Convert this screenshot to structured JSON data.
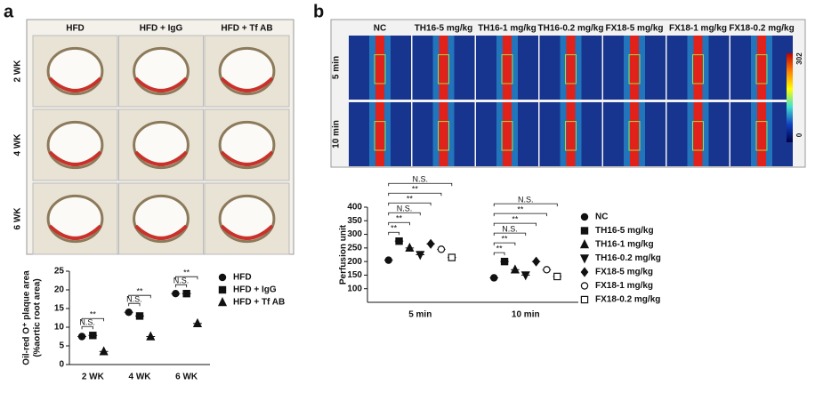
{
  "images": [
    {
      "label": "a",
      "columns": [
        "HFD",
        "HFD + IgG",
        "HFD + Tf AB"
      ],
      "rows": [
        "2 WK",
        "4 WK",
        "6 WK"
      ]
    },
    {
      "label": "b",
      "columns": [
        "NC",
        "TH16-5 mg/kg",
        "TH16-1 mg/kg",
        "TH16-0.2 mg/kg",
        "FX18-5 mg/kg",
        "FX18-1 mg/kg",
        "FX18-0.2 mg/kg"
      ],
      "rows": [
        "5 min",
        "10 min"
      ],
      "scale": [
        302,
        0
      ]
    }
  ],
  "chart_data": [
    {
      "type": "dot",
      "ylabel": [
        "Oil-red O⁺ plaque area",
        "(%aortic root area)"
      ],
      "categories": [
        "2 WK",
        "4 WK",
        "6 WK"
      ],
      "series": [
        {
          "name": "HFD",
          "marker": "circle",
          "color": "#111111",
          "values": [
            7.5,
            14,
            19
          ]
        },
        {
          "name": "HFD + IgG",
          "marker": "square",
          "color": "#111111",
          "values": [
            7.8,
            13,
            19
          ]
        },
        {
          "name": "HFD + Tf AB",
          "marker": "triangle",
          "color": "#111111",
          "values": [
            3.5,
            7.5,
            11
          ]
        }
      ],
      "comparisons": [
        [
          "N.S.",
          "**"
        ],
        [
          "N.S.",
          "**"
        ],
        [
          "N.S.",
          "**"
        ]
      ],
      "ylim": [
        0,
        25
      ],
      "yticks": [
        0,
        5,
        10,
        15,
        20,
        25
      ]
    },
    {
      "type": "dot",
      "ylabel": [
        "Perfusion unit"
      ],
      "categories": [
        "5 min",
        "10 min"
      ],
      "series": [
        {
          "name": "NC",
          "marker": "circle",
          "color": "#111111",
          "values": [
            205,
            140
          ]
        },
        {
          "name": "TH16-5 mg/kg",
          "marker": "square",
          "color": "#111111",
          "values": [
            275,
            200
          ]
        },
        {
          "name": "TH16-1 mg/kg",
          "marker": "triangle",
          "color": "#111111",
          "values": [
            250,
            170
          ]
        },
        {
          "name": "TH16-0.2 mg/kg",
          "marker": "triangle-down",
          "color": "#111111",
          "values": [
            225,
            150
          ]
        },
        {
          "name": "FX18-5 mg/kg",
          "marker": "diamond",
          "color": "#111111",
          "values": [
            265,
            200
          ]
        },
        {
          "name": "FX18-1 mg/kg",
          "marker": "open-circle",
          "color": "#111111",
          "values": [
            245,
            170
          ]
        },
        {
          "name": "FX18-0.2 mg/kg",
          "marker": "open-square",
          "color": "#111111",
          "values": [
            215,
            145
          ]
        }
      ],
      "comparisons": [
        [
          "**",
          "**",
          "N.S.",
          "**",
          "**",
          "N.S."
        ],
        [
          "**",
          "**",
          "N.S.",
          "**",
          "**",
          "N.S."
        ]
      ],
      "ylim": [
        50,
        400
      ],
      "yticks": [
        100,
        150,
        200,
        250,
        300,
        350,
        400
      ]
    }
  ]
}
